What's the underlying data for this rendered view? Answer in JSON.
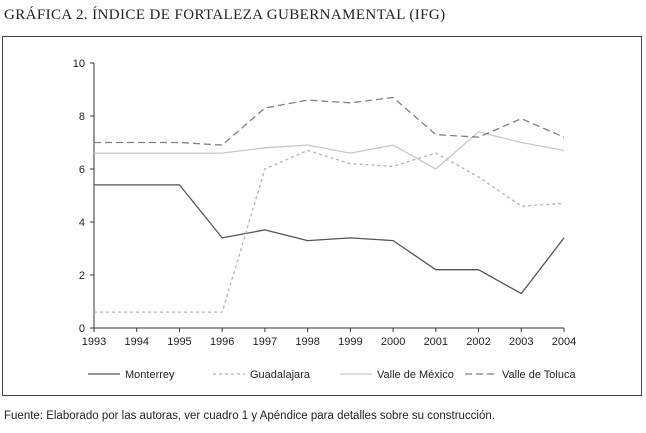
{
  "header": {
    "title": "GRÁFICA 2. ÍNDICE DE FORTALEZA GUBERNAMENTAL (IFG)"
  },
  "chart_data": {
    "type": "line",
    "title": "GRÁFICA 2. ÍNDICE DE FORTALEZA GUBERNAMENTAL (IFG)",
    "xlabel": "",
    "ylabel": "",
    "categories": [
      "1993",
      "1994",
      "1995",
      "1996",
      "1997",
      "1998",
      "1999",
      "2000",
      "2001",
      "2002",
      "2003",
      "2004"
    ],
    "ylim": [
      0,
      10
    ],
    "yticks": [
      0,
      2,
      4,
      6,
      8,
      10
    ],
    "grid": false,
    "legend_position": "bottom",
    "series": [
      {
        "name": "Monterrey",
        "style": "solid",
        "color": "#555555",
        "values": [
          5.4,
          5.4,
          5.4,
          3.4,
          3.7,
          3.3,
          3.4,
          3.3,
          2.2,
          2.2,
          1.3,
          3.4
        ]
      },
      {
        "name": "Guadalajara",
        "style": "dotted",
        "color": "#b3b3b3",
        "values": [
          0.6,
          0.6,
          0.6,
          0.6,
          6.0,
          6.7,
          6.2,
          6.1,
          6.6,
          5.7,
          4.6,
          4.7
        ]
      },
      {
        "name": "Valle de México",
        "style": "solid",
        "color": "#c8c8c8",
        "values": [
          6.6,
          6.6,
          6.6,
          6.6,
          6.8,
          6.9,
          6.6,
          6.9,
          6.0,
          7.4,
          7.0,
          6.7
        ]
      },
      {
        "name": "Valle de Toluca",
        "style": "dashed",
        "color": "#808080",
        "values": [
          7.0,
          7.0,
          7.0,
          6.9,
          8.3,
          8.6,
          8.5,
          8.7,
          7.3,
          7.2,
          7.9,
          7.2
        ]
      }
    ]
  },
  "footer": {
    "source": "Fuente: Elaborado por las autoras, ver cuadro 1 y Apéndice para detalles sobre su construcción."
  }
}
